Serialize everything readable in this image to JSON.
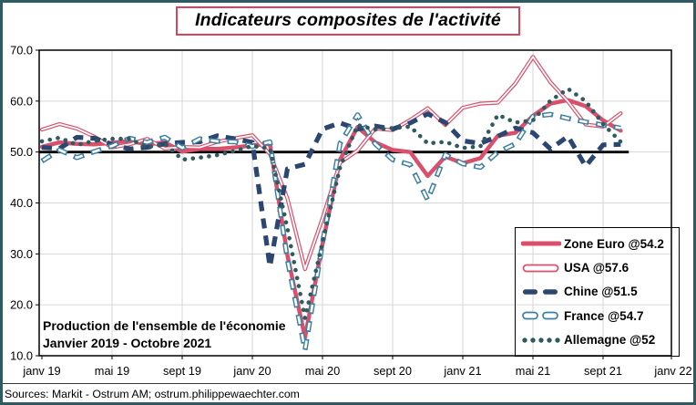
{
  "window": {
    "title": "Indicateurs composites de l'activité"
  },
  "annotation": {
    "line1": "Production de l'ensemble de l'économie",
    "line2": "Janvier 2019 - Octobre 2021"
  },
  "footer": {
    "source": "Sources: Markit - Ostrum AM; ostrum.philippewaechter.com"
  },
  "colors": {
    "frame": "#2e5a62",
    "title_border": "#d9435e",
    "grid": "#d6d6d6",
    "axis": "#000000",
    "reference_line": "#000000",
    "rose": "#d8506b",
    "navy": "#2c4672",
    "steel_blue": "#3f7fa0",
    "dark_teal": "#2f5a60"
  },
  "chart_data": {
    "type": "line",
    "title": "Indicateurs composites de l'activité",
    "subtitle": "Production de l'ensemble de l'économie, Janvier 2019 - Octobre 2021",
    "x_unit": "month",
    "x_range": [
      "janv 2019",
      "oct 2021"
    ],
    "x_tick_labels": [
      "janv 19",
      "mai 19",
      "sept 19",
      "janv 20",
      "mai 20",
      "sept 20",
      "janv 21",
      "mai 21",
      "sept 21",
      "janv 22"
    ],
    "y_ticks": [
      10,
      20,
      30,
      40,
      50,
      60,
      70
    ],
    "y_tick_labels": [
      "10.0",
      "20.0",
      "30.0",
      "40.0",
      "50.0",
      "60.0",
      "70.0"
    ],
    "ylim": [
      10,
      70
    ],
    "reference_line_y": 50,
    "grid": true,
    "legend_position": "bottom-right",
    "series": [
      {
        "name": "Zone Euro @54.2",
        "last_value": 54.2,
        "style": "thick-solid",
        "color": "#d8506b",
        "values": [
          51.0,
          51.9,
          51.6,
          51.5,
          51.8,
          52.2,
          51.5,
          51.9,
          50.1,
          50.6,
          50.6,
          50.9,
          51.3,
          51.6,
          29.7,
          13.6,
          31.9,
          48.5,
          54.9,
          51.9,
          50.4,
          50.0,
          45.3,
          49.1,
          47.8,
          48.8,
          53.2,
          53.8,
          57.1,
          59.5,
          60.2,
          59.0,
          56.2,
          54.2
        ]
      },
      {
        "name": "USA @57.6",
        "last_value": 57.6,
        "style": "thin-outline",
        "color": "#d8506b",
        "values": [
          54.4,
          55.5,
          54.6,
          53.0,
          50.9,
          51.5,
          52.6,
          50.7,
          51.0,
          50.9,
          52.0,
          52.7,
          53.3,
          49.6,
          40.9,
          27.0,
          37.0,
          47.9,
          50.3,
          54.6,
          54.3,
          56.3,
          58.6,
          55.3,
          58.7,
          59.5,
          59.7,
          63.5,
          68.7,
          63.7,
          59.9,
          55.4,
          55.0,
          57.6
        ]
      },
      {
        "name": "Chine @51.5",
        "last_value": 51.5,
        "style": "dashed",
        "color": "#2c4672",
        "values": [
          50.9,
          50.7,
          52.9,
          52.7,
          51.5,
          50.6,
          50.9,
          51.6,
          51.9,
          52.0,
          53.2,
          52.6,
          51.9,
          27.5,
          46.7,
          47.6,
          54.5,
          55.7,
          54.5,
          55.1,
          54.5,
          55.7,
          57.5,
          55.8,
          52.2,
          51.7,
          53.1,
          54.7,
          53.8,
          50.6,
          53.1,
          47.2,
          51.4,
          51.5
        ]
      },
      {
        "name": "France @54.7",
        "last_value": 54.7,
        "style": "dashed-outline",
        "color": "#3f7fa0",
        "values": [
          48.2,
          50.4,
          48.9,
          50.1,
          51.2,
          52.7,
          51.9,
          52.9,
          50.8,
          52.6,
          52.1,
          52.0,
          51.1,
          52.0,
          28.9,
          11.1,
          32.1,
          51.7,
          57.3,
          51.6,
          48.5,
          47.5,
          40.6,
          49.5,
          47.7,
          47.0,
          50.0,
          51.6,
          57.0,
          57.4,
          56.6,
          55.9,
          55.3,
          54.7
        ]
      },
      {
        "name": "Allemagne @52",
        "last_value": 52,
        "style": "dotted",
        "color": "#2f5a60",
        "values": [
          52.1,
          52.8,
          51.4,
          52.2,
          52.6,
          52.6,
          50.9,
          51.7,
          48.5,
          48.9,
          49.4,
          50.2,
          51.2,
          50.7,
          35.0,
          17.4,
          32.3,
          47.0,
          55.3,
          54.4,
          54.7,
          55.0,
          51.7,
          52.0,
          50.8,
          51.1,
          57.3,
          55.8,
          56.2,
          60.1,
          62.4,
          60.0,
          55.5,
          52.0
        ]
      }
    ]
  }
}
